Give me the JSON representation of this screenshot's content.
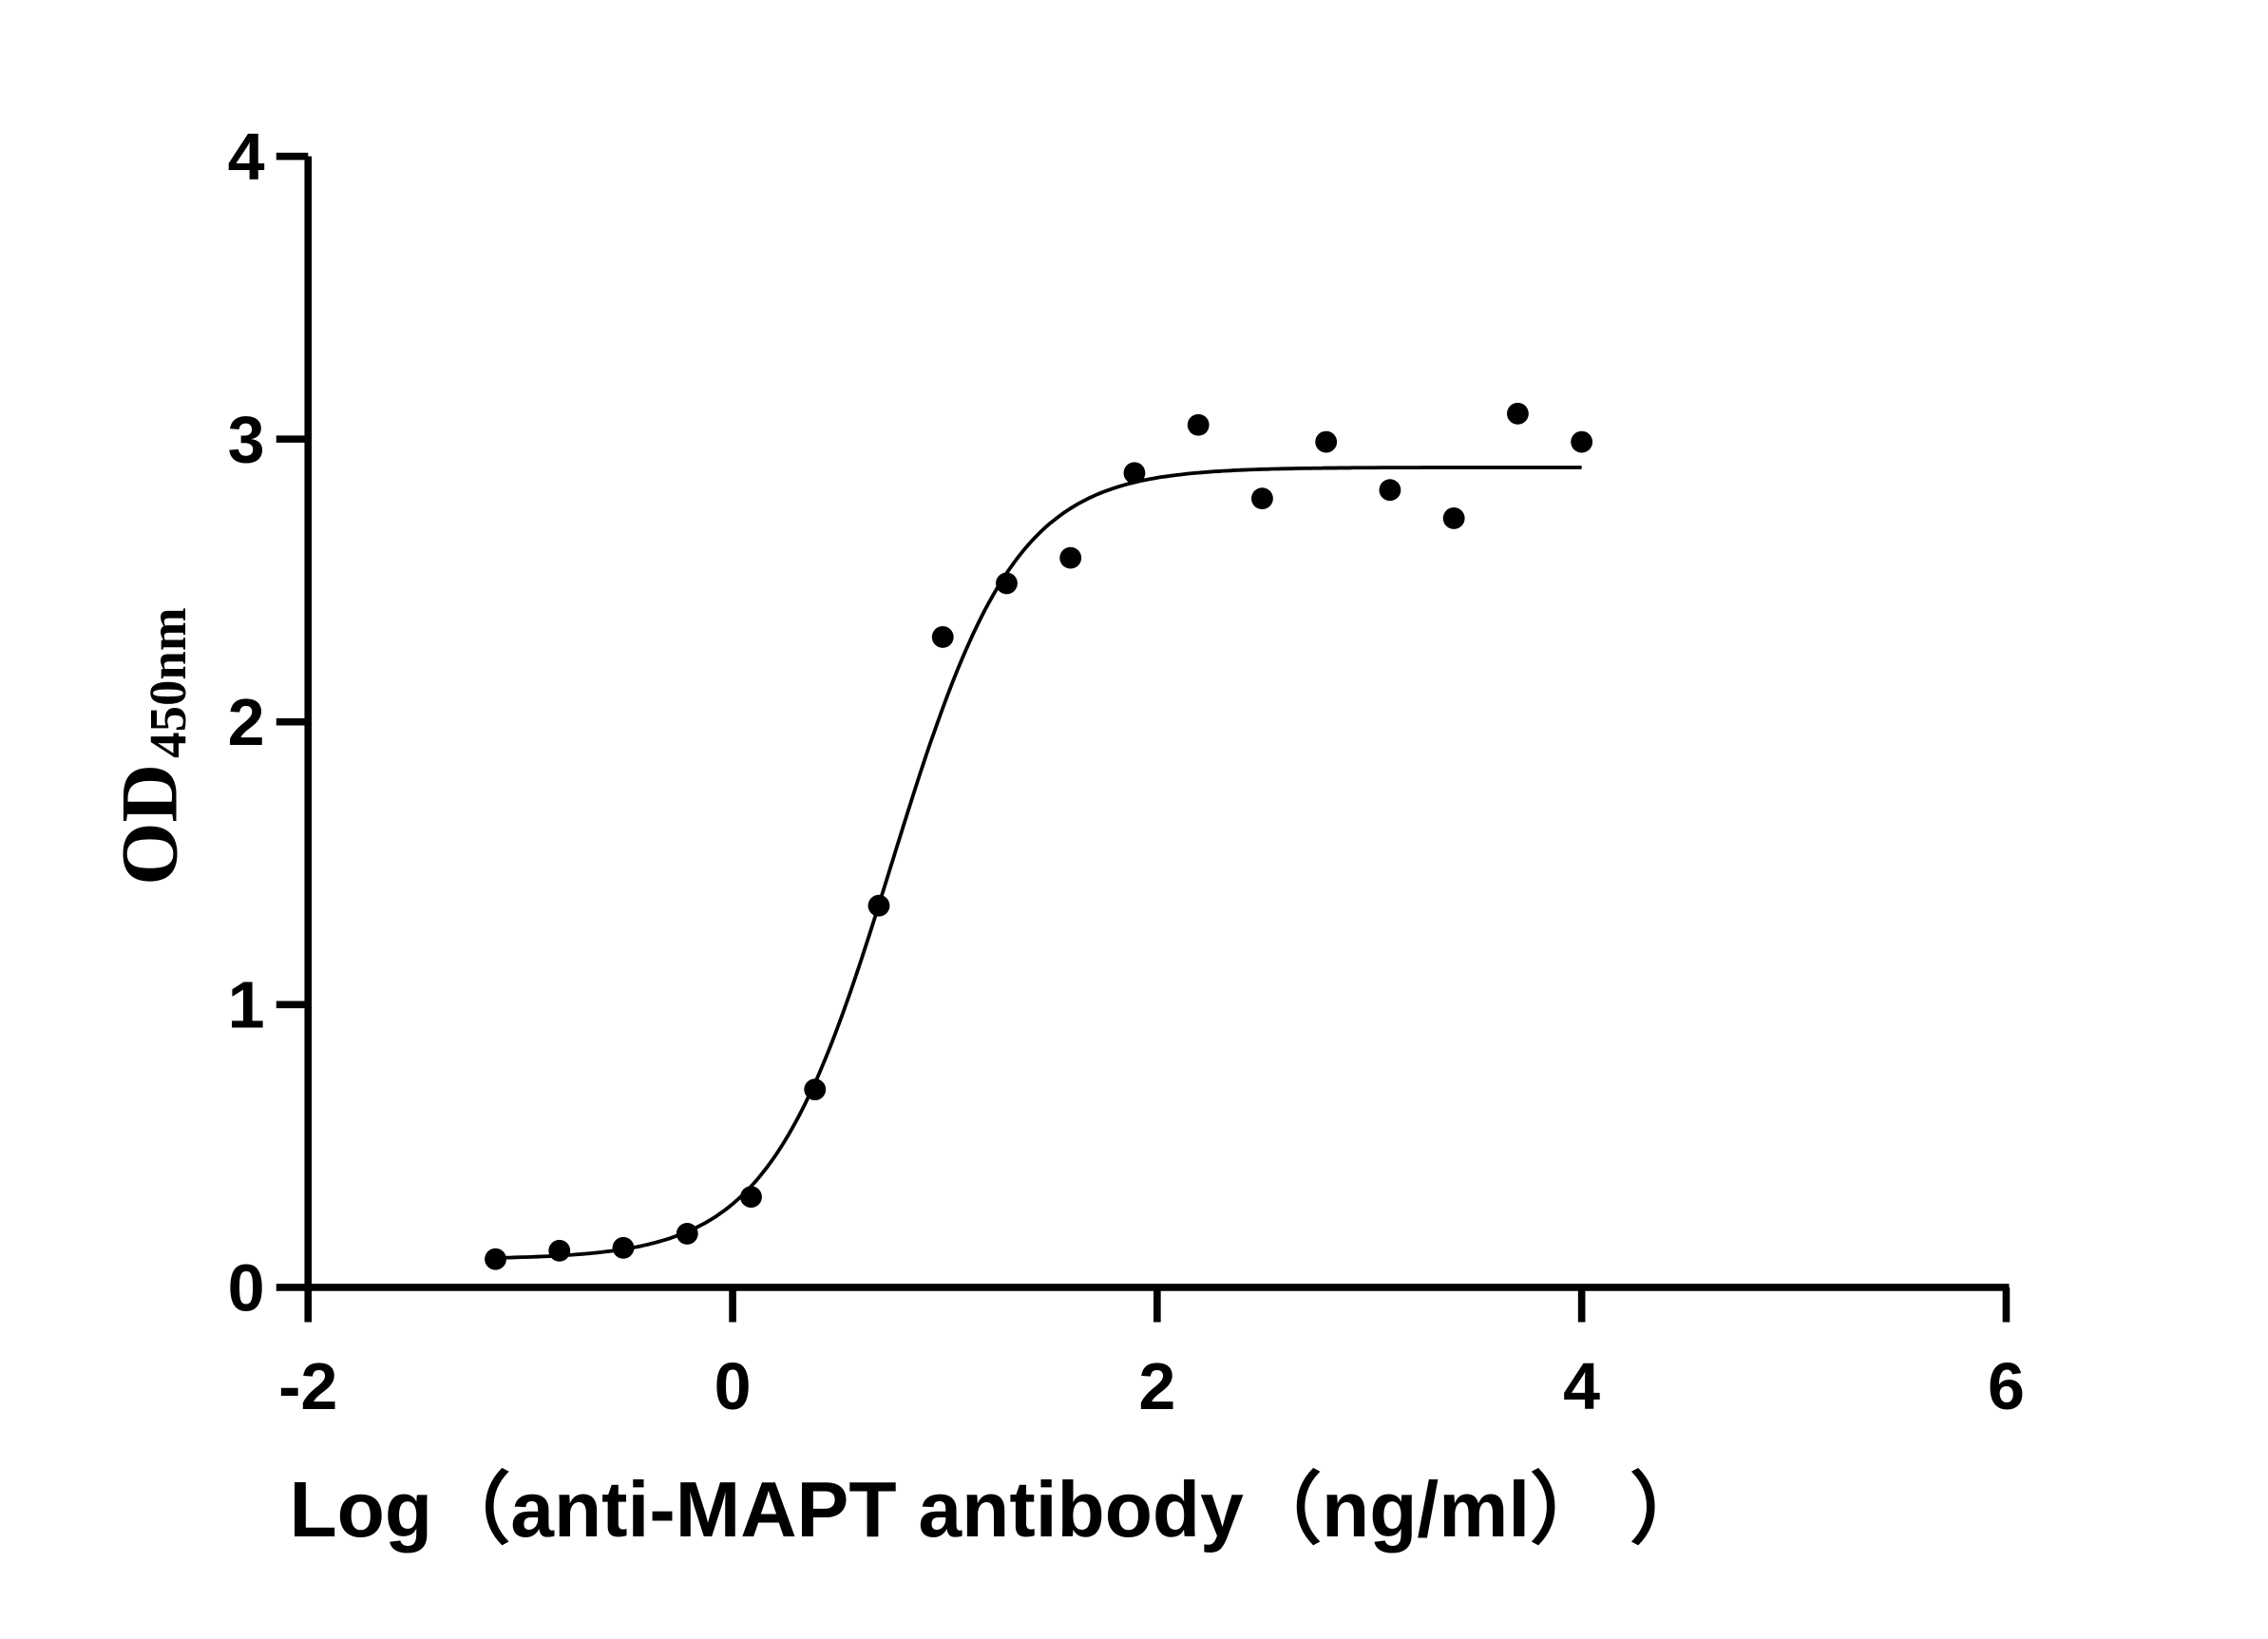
{
  "chart_data": {
    "type": "scatter",
    "title": "",
    "xlabel": "Log（anti-MAPT  antibody（ng/ml）  ）",
    "ylabel": "OD",
    "ylabel_subscript": "450nm",
    "xlim": [
      -2,
      6
    ],
    "ylim": [
      0,
      4
    ],
    "xticks": [
      "-2",
      "0",
      "2",
      "4",
      "6"
    ],
    "yticks": [
      "0",
      "1",
      "2",
      "3",
      "4"
    ],
    "grid": false,
    "legend": "none",
    "colors": {
      "points": "#000000",
      "curve": "#000000",
      "axes": "#000000"
    },
    "points": {
      "x": [
        -1.117,
        -0.816,
        -0.515,
        -0.214,
        0.087,
        0.388,
        0.689,
        0.99,
        1.291,
        1.592,
        1.893,
        2.194,
        2.495,
        2.796,
        3.097,
        3.398,
        3.699,
        4.0
      ],
      "y": [
        0.1,
        0.13,
        0.14,
        0.19,
        0.32,
        0.7,
        1.35,
        2.3,
        2.49,
        2.58,
        2.88,
        3.05,
        2.79,
        2.99,
        2.82,
        2.72,
        3.09,
        2.99
      ]
    },
    "fit_curve": {
      "model": "4PL",
      "bottom": 0.1,
      "top": 2.9,
      "logEC50": 0.75,
      "hill": 1.5,
      "x_range": [
        -1.117,
        4.0
      ]
    }
  }
}
